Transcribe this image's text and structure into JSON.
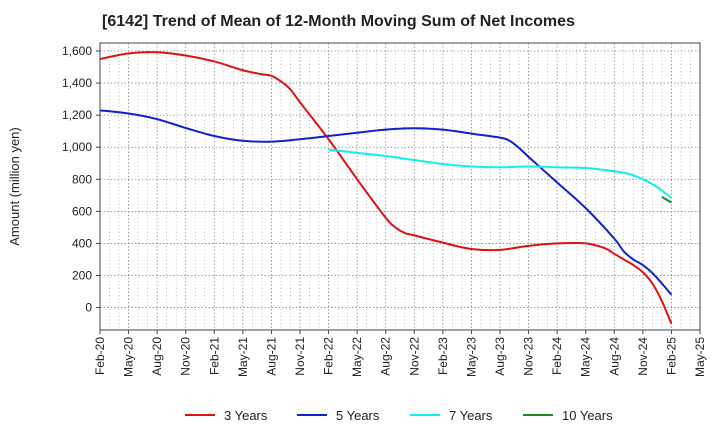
{
  "chart_data": {
    "type": "line",
    "title": "[6142]  Trend of Mean of 12-Month Moving Sum of Net Incomes",
    "xlabel": "",
    "ylabel": "Amount (million yen)",
    "ylim": [
      -140,
      1650
    ],
    "yticks": [
      0,
      200,
      400,
      600,
      800,
      1000,
      1200,
      1400,
      1600
    ],
    "ytick_labels": [
      "0",
      "200",
      "400",
      "600",
      "800",
      "1,000",
      "1,200",
      "1,400",
      "1,600"
    ],
    "xticks": [
      "Feb-20",
      "May-20",
      "Aug-20",
      "Nov-20",
      "Feb-21",
      "May-21",
      "Aug-21",
      "Nov-21",
      "Feb-22",
      "May-22",
      "Aug-22",
      "Nov-22",
      "Feb-23",
      "May-23",
      "Aug-23",
      "Nov-23",
      "Feb-24",
      "May-24",
      "Aug-24",
      "Nov-24",
      "Feb-25",
      "May-25"
    ],
    "grid": true,
    "legend_position": "bottom",
    "series": [
      {
        "name": "3 Years",
        "color": "#dd1111",
        "x": [
          "Feb-20",
          "May-20",
          "Aug-20",
          "Nov-20",
          "Feb-21",
          "May-21",
          "Jul-21",
          "Aug-21",
          "Sep-21",
          "Oct-21",
          "Nov-21",
          "Feb-22",
          "May-22",
          "Aug-22",
          "Sep-22",
          "Oct-22",
          "Nov-22",
          "Feb-23",
          "May-23",
          "Aug-23",
          "Nov-23",
          "Feb-24",
          "May-24",
          "Jul-24",
          "Aug-24",
          "Sep-24",
          "Oct-24",
          "Nov-24",
          "Dec-24",
          "Jan-25",
          "Feb-25"
        ],
        "values": [
          1550,
          1585,
          1592,
          1572,
          1535,
          1480,
          1455,
          1445,
          1410,
          1360,
          1280,
          1050,
          800,
          560,
          500,
          465,
          450,
          405,
          365,
          360,
          385,
          400,
          400,
          370,
          335,
          300,
          265,
          220,
          150,
          40,
          -100
        ]
      },
      {
        "name": "5 Years",
        "color": "#1122cc",
        "x": [
          "Feb-20",
          "May-20",
          "Aug-20",
          "Nov-20",
          "Feb-21",
          "May-21",
          "Aug-21",
          "Nov-21",
          "Feb-22",
          "May-22",
          "Aug-22",
          "Nov-22",
          "Feb-23",
          "May-23",
          "Aug-23",
          "Sep-23",
          "Oct-23",
          "Nov-23",
          "Feb-24",
          "May-24",
          "Aug-24",
          "Sep-24",
          "Oct-24",
          "Nov-24",
          "Dec-24",
          "Jan-25",
          "Feb-25"
        ],
        "values": [
          1230,
          1210,
          1175,
          1120,
          1070,
          1040,
          1035,
          1050,
          1070,
          1090,
          1110,
          1118,
          1110,
          1085,
          1060,
          1040,
          995,
          940,
          780,
          620,
          430,
          350,
          300,
          265,
          215,
          150,
          80
        ]
      },
      {
        "name": "7 Years",
        "color": "#11eeee",
        "x": [
          "Feb-22",
          "May-22",
          "Aug-22",
          "Nov-22",
          "Feb-23",
          "May-23",
          "Aug-23",
          "Nov-23",
          "Feb-24",
          "May-24",
          "Aug-24",
          "Sep-24",
          "Oct-24",
          "Nov-24",
          "Dec-24",
          "Jan-25",
          "Feb-25"
        ],
        "values": [
          985,
          965,
          945,
          920,
          895,
          880,
          875,
          880,
          875,
          870,
          850,
          840,
          825,
          800,
          770,
          730,
          685
        ]
      },
      {
        "name": "10 Years",
        "color": "#228822",
        "x": [
          "Jan-25",
          "Feb-25"
        ],
        "values": [
          690,
          655
        ]
      }
    ]
  }
}
